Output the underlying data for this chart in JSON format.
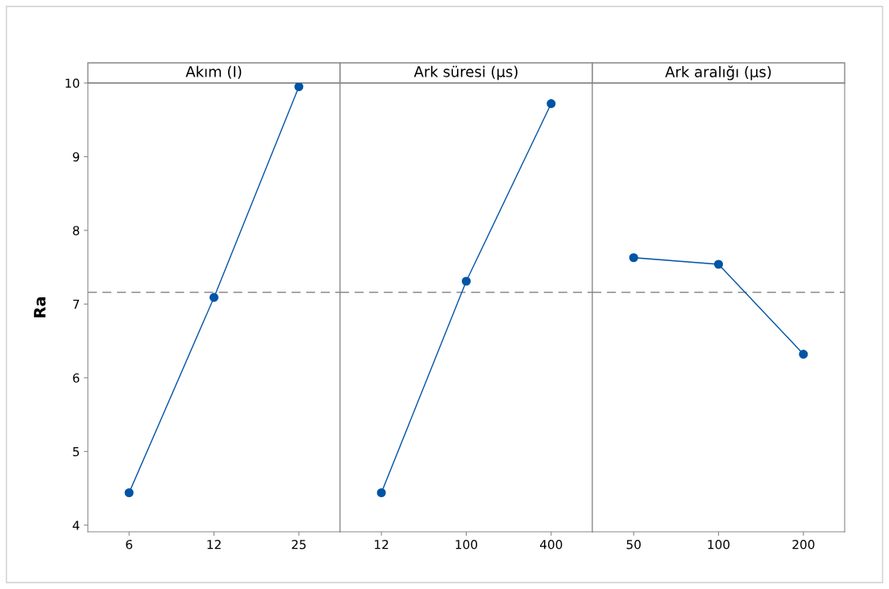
{
  "chart_data": [
    {
      "type": "line",
      "title": "Akım (I)",
      "ylabel": "Ra",
      "categories": [
        "6",
        "12",
        "25"
      ],
      "series": [
        {
          "color": "#0054a6",
          "values": [
            4.44,
            7.09,
            9.95
          ]
        }
      ],
      "ylim": [
        3.91,
        10.0
      ],
      "yticks": [
        4,
        5,
        6,
        7,
        8,
        9,
        10
      ],
      "marker": "circle",
      "line_style": "solid",
      "ref_lines": [
        {
          "axis": "y",
          "value": 7.16,
          "color": "#8c8c8c",
          "line_style": "dashed"
        }
      ]
    },
    {
      "type": "line",
      "title": "Ark süresi (µs)",
      "categories": [
        "12",
        "100",
        "400"
      ],
      "series": [
        {
          "color": "#0054a6",
          "values": [
            4.44,
            7.31,
            9.72
          ]
        }
      ],
      "ylim": [
        3.91,
        10.0
      ],
      "tick_labels": "x",
      "marker": "circle",
      "line_style": "solid",
      "ref_lines": [
        {
          "axis": "y",
          "value": 7.16,
          "color": "#8c8c8c",
          "line_style": "dashed"
        }
      ]
    },
    {
      "type": "line",
      "title": "Ark aralığı (µs)",
      "categories": [
        "50",
        "100",
        "200"
      ],
      "series": [
        {
          "color": "#0054a6",
          "values": [
            7.63,
            7.54,
            6.32
          ]
        }
      ],
      "ylim": [
        3.91,
        10.0
      ],
      "tick_labels": "x",
      "marker": "circle",
      "line_style": "solid",
      "ref_lines": [
        {
          "axis": "y",
          "value": 7.16,
          "color": "#8c8c8c",
          "line_style": "dashed"
        }
      ]
    }
  ]
}
